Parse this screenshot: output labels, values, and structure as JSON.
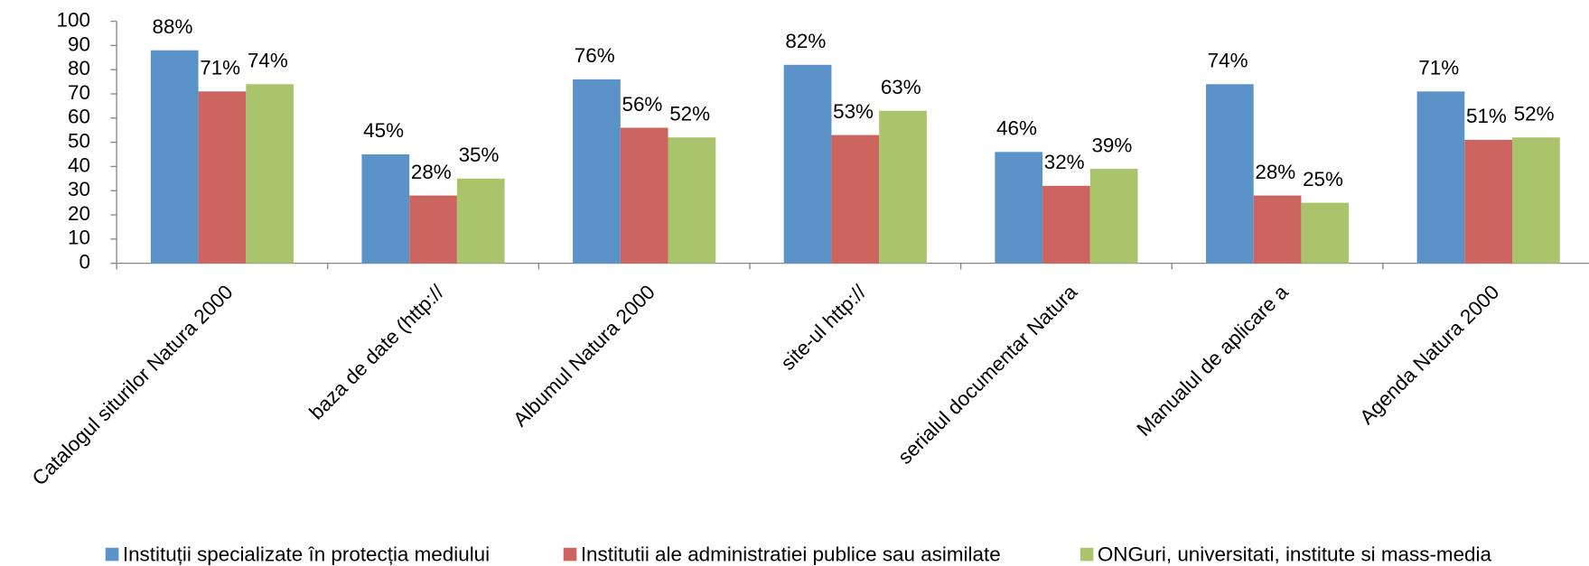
{
  "chart_data": {
    "type": "bar",
    "categories": [
      "Catalogul siturilor Natura 2000",
      "baza de date (http://",
      "Albumul Natura 2000",
      "site-ul http://",
      "serialul documentar Natura",
      "Manualul de aplicare a",
      "Agenda Natura 2000"
    ],
    "series": [
      {
        "name": "Instituții specializate în protecția mediului",
        "color": "#5b93c9",
        "values": [
          88,
          45,
          76,
          82,
          46,
          74,
          71
        ],
        "value_labels": [
          "88%",
          "45%",
          "76%",
          "82%",
          "46%",
          "74%",
          "71%"
        ]
      },
      {
        "name": "Institutii ale administratiei publice sau asimilate",
        "color": "#cc6560",
        "values": [
          71,
          28,
          56,
          53,
          32,
          28,
          51
        ],
        "value_labels": [
          "71%",
          "28%",
          "56%",
          "53%",
          "32%",
          "28%",
          "51%"
        ]
      },
      {
        "name": "ONGuri, universitati, institute si mass-media",
        "color": "#a9c46b",
        "values": [
          74,
          35,
          52,
          63,
          39,
          25,
          52
        ],
        "value_labels": [
          "74%",
          "35%",
          "52%",
          "63%",
          "39%",
          "25%",
          "52%"
        ]
      }
    ],
    "ylim": [
      0,
      100
    ],
    "yticks": [
      0,
      10,
      20,
      30,
      40,
      50,
      60,
      70,
      80,
      90,
      100
    ],
    "legend": "bottom"
  }
}
